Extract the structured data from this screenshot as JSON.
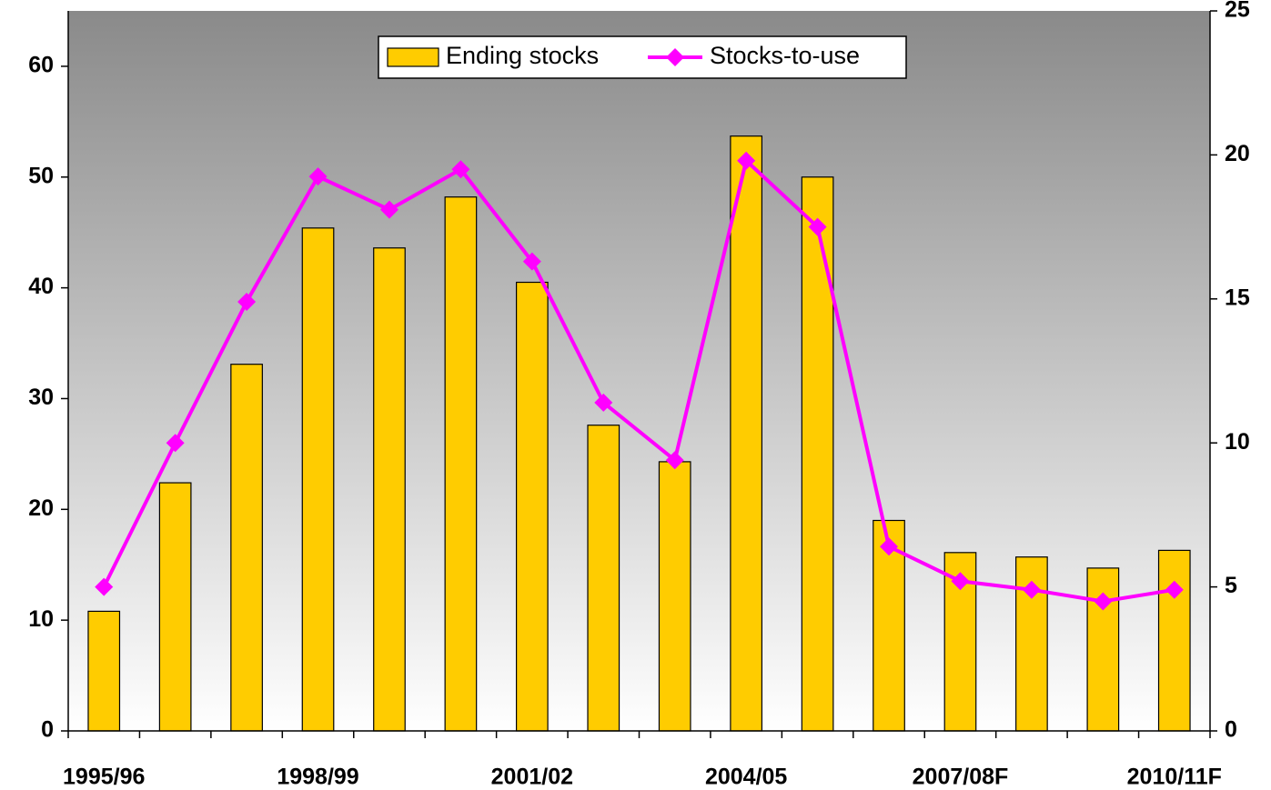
{
  "chart_data": {
    "type": "bar",
    "categories": [
      "1995/96",
      null,
      null,
      "1998/99",
      null,
      null,
      "2001/02",
      null,
      null,
      "2004/05",
      null,
      null,
      "2007/08F",
      null,
      null,
      "2010/11F"
    ],
    "series": [
      {
        "name": "Ending stocks",
        "type": "bar",
        "color": "#ffcc00",
        "values": [
          10.8,
          22.4,
          33.1,
          45.4,
          43.6,
          48.2,
          40.5,
          27.6,
          24.3,
          53.7,
          50.0,
          19.0,
          16.1,
          15.7,
          14.7,
          16.3
        ]
      },
      {
        "name": "Stocks-to-use",
        "type": "line",
        "axis": "y2",
        "color": "#ff00ff",
        "values": [
          5.0,
          10.0,
          14.9,
          19.25,
          18.1,
          19.5,
          16.3,
          11.4,
          9.4,
          19.8,
          17.5,
          6.4,
          5.2,
          4.9,
          4.5,
          4.9
        ]
      }
    ],
    "ylim": [
      0,
      65
    ],
    "yticks": [
      0,
      10,
      20,
      30,
      40,
      50,
      60
    ],
    "y2lim": [
      0,
      25
    ],
    "y2ticks": [
      0,
      5,
      10,
      15,
      20,
      25
    ],
    "legend": "top"
  }
}
